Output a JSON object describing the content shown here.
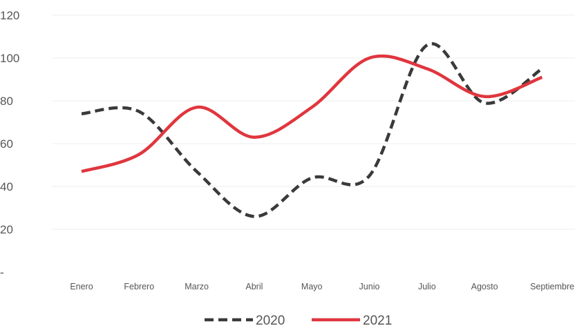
{
  "chart_data": {
    "type": "line",
    "categories": [
      "Enero",
      "Febrero",
      "Marzo",
      "Abril",
      "Mayo",
      "Junio",
      "Julio",
      "Agosto",
      "Septiembre"
    ],
    "series": [
      {
        "name": "2020",
        "values": [
          74,
          75,
          47,
          26,
          44,
          45,
          106,
          79,
          95
        ],
        "color": "#3a3a3a",
        "style": "dashed"
      },
      {
        "name": "2021",
        "values": [
          47,
          55,
          77,
          63,
          77,
          100,
          95,
          82,
          91
        ],
        "color": "#e0363e",
        "style": "solid"
      }
    ],
    "ytick_labels": [
      "-",
      "20",
      "40",
      "60",
      "80",
      "100",
      "120"
    ],
    "ylim": [
      0,
      120
    ],
    "grid": true,
    "legend_position": "bottom-center"
  }
}
